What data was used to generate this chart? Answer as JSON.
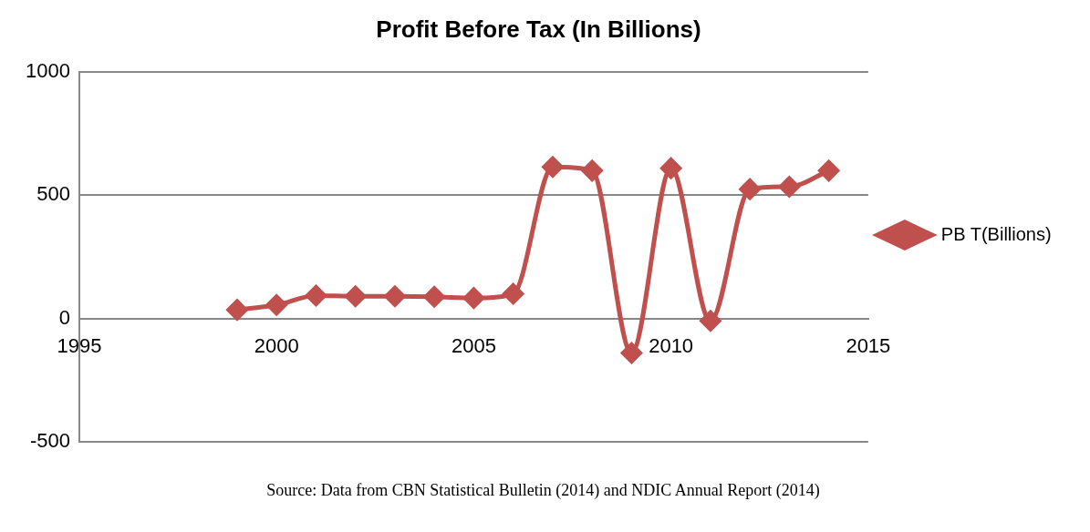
{
  "chart_data": {
    "type": "line",
    "title": "Profit Before Tax (In Billions)",
    "x": [
      1999,
      2000,
      2001,
      2002,
      2003,
      2004,
      2005,
      2006,
      2007,
      2008,
      2009,
      2010,
      2011,
      2012,
      2013,
      2014
    ],
    "series": [
      {
        "name": "PB T(Billions)",
        "color": "#c0504d",
        "values": [
          35,
          55,
          93,
          90,
          90,
          88,
          83,
          100,
          615,
          600,
          -140,
          610,
          -10,
          525,
          535,
          600
        ]
      }
    ],
    "xlim": [
      1995,
      2015
    ],
    "xticks": [
      1995,
      2000,
      2005,
      2010,
      2015
    ],
    "ylim": [
      -500,
      1000
    ],
    "yticks": [
      -500,
      0,
      500,
      1000
    ],
    "grid": "y",
    "legend": "right",
    "marker": "diamond",
    "line_style": "solid",
    "annotations": [
      "Source: Data from CBN Statistical Bulletin (2014) and NDIC Annual Report (2014)"
    ]
  }
}
